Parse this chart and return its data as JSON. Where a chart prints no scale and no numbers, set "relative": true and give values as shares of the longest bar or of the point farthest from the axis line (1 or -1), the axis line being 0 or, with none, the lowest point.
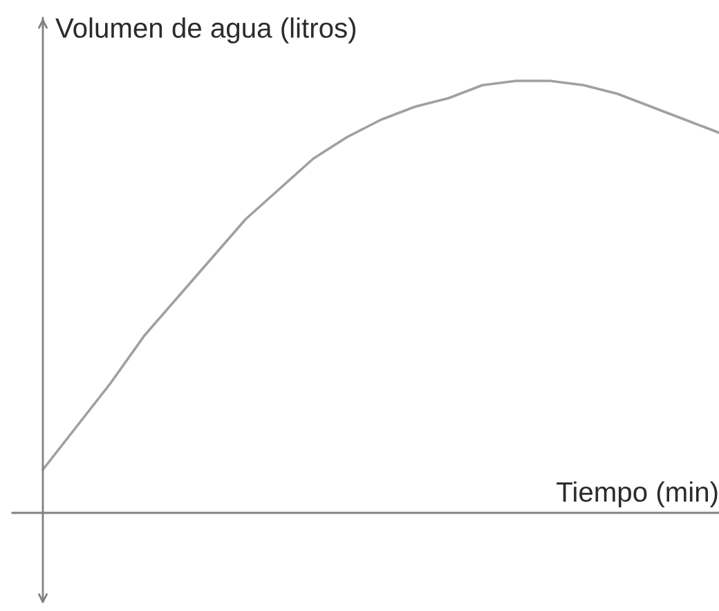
{
  "chart_data": {
    "type": "line",
    "relative": true,
    "xlabel": "Tiempo (min)",
    "ylabel": "Volumen de agua (litros)",
    "categories": [
      null,
      null,
      null,
      null,
      null,
      null,
      null,
      null,
      null,
      null,
      null,
      null,
      null,
      null,
      null,
      null,
      null,
      null,
      null,
      null,
      null
    ],
    "color": "#a0a0a0",
    "values": [
      0.1,
      0.2,
      0.3,
      0.41,
      0.5,
      0.59,
      0.68,
      0.75,
      0.82,
      0.87,
      0.91,
      0.94,
      0.96,
      0.99,
      1.0,
      1.0,
      0.99,
      0.97,
      0.94,
      0.91,
      0.88
    ]
  }
}
